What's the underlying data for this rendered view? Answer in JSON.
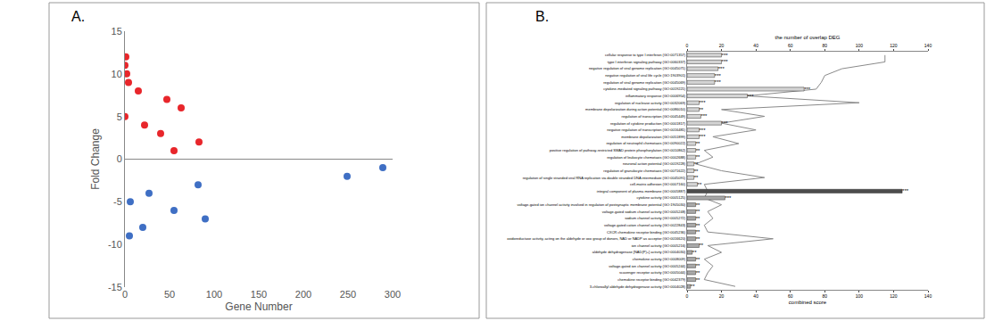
{
  "chart_data": [
    {
      "type": "scatter",
      "title": "A.",
      "xlabel": "Gene Number",
      "ylabel": "Fold Change",
      "xlim": [
        0,
        300
      ],
      "xticks": [
        0,
        50,
        100,
        150,
        200,
        250,
        300
      ],
      "ylim": [
        -15,
        15
      ],
      "yticks": [
        -15,
        -10,
        -5,
        0,
        5,
        10,
        15
      ],
      "grid": false,
      "marker": "circle",
      "series": [
        {
          "color": "#e8262b",
          "x": [
            1,
            0,
            2,
            4,
            0,
            15,
            22,
            40,
            47,
            55,
            63,
            83
          ],
          "values": [
            12,
            11,
            10,
            9,
            5,
            8,
            4,
            3,
            7,
            1,
            6,
            2
          ]
        },
        {
          "color": "#3f6fc4",
          "x": [
            5,
            6,
            20,
            27,
            55,
            82,
            90,
            249,
            289
          ],
          "values": [
            -9,
            -5,
            -8,
            -4,
            -6,
            -3,
            -7,
            -2,
            -1
          ]
        }
      ]
    },
    {
      "type": "bar",
      "title": "B.",
      "orientation": "horizontal",
      "xlabel": "combined score",
      "x2label": "the number of overlap DEG",
      "xlim": [
        0,
        140
      ],
      "xticks": [
        0,
        20,
        40,
        60,
        80,
        100,
        120,
        140
      ],
      "x2lim": [
        0,
        140
      ],
      "x2ticks": [
        0,
        20,
        40,
        60,
        80,
        100,
        120,
        140
      ],
      "grid": false,
      "categories": [
        "cellular response to type I interferon (GO:0071357)",
        "type I interferon signaling pathway (GO:0060337)",
        "negative regulation of viral genome replication (GO:0045071)",
        "negative regulation of viral life cycle (GO:1903901)",
        "regulation of viral genome replication (GO:0045069)",
        "cytokine-mediated signaling pathway (GO:0019221)",
        "inflammatory response (GO:0006954)",
        "regulation of nuclease activity (GO:0032069)",
        "membrane depolarization during action potential (GO:0086010)",
        "regulation of transcription (GO:0045449)",
        "regulation of cytokine production (GO:0001817)",
        "negative regulation of transcription (GO:0016481)",
        "membrane depolarization (GO:0051899)",
        "regulation of neutrophil chemotaxis (GO:0090022)",
        "positive regulation of pathway-restricted SMAD protein phosphorylation (GO:0010862)",
        "regulation of leukocyte chemotaxis (GO:0002688)",
        "neuronal action potential (GO:0019228)",
        "regulation of granulocyte chemotaxis (GO:0071622)",
        "regulation of single stranded viral RNA replication via double stranded DNA intermediate (GO:0045091)",
        "cell-matrix adhesion (GO:0007160)",
        "integral component of plasma membrane (GO:0005887)",
        "cytokine activity (GO:0005125)",
        "voltage-gated ion channel activity involved in regulation of postsynaptic membrane potential (GO:1905030)",
        "voltage-gated sodium channel activity (GO:0005248)",
        "sodium channel activity (GO:0005272)",
        "voltage-gated cation channel activity (GO:0022843)",
        "CXCR chemokine receptor binding (GO:0045236)",
        "oxidoreductase activity, acting on the aldehyde or oxo group of donors, NAD or NADP as acceptor (GO:0016620)",
        "ion channel activity (GO:0005216)",
        "aldehyde dehydrogenase [NAD(P)+] activity (GO:0004030)",
        "chemokine activity (GO:0008009)",
        "voltage-gated ion channel activity (GO:0005244)",
        "scavenger receptor activity (GO:0005044)",
        "chemokine receptor binding (GO:0042379)",
        "3-chloroallyl aldehyde dehydrogenase activity (GO:0004028)"
      ],
      "significance": [
        "***",
        "***",
        "***",
        "***",
        "***",
        "***",
        "***",
        "***",
        "**",
        "***",
        "***",
        "***",
        "***",
        "**",
        "**",
        "**",
        "**",
        "**",
        "**",
        "**",
        "***",
        "***",
        "**",
        "**",
        "**",
        "**",
        "**",
        "**",
        "**",
        "**",
        "**",
        "**",
        "**",
        "**",
        "**"
      ],
      "series": [
        {
          "type": "bar",
          "axis": "x2",
          "colors": [
            "#d4d4d4",
            "#d4d4d4",
            "#d4d4d4",
            "#d4d4d4",
            "#d4d4d4",
            "#d4d4d4",
            "#d4d4d4",
            "#d4d4d4",
            "#d4d4d4",
            "#d4d4d4",
            "#d4d4d4",
            "#d4d4d4",
            "#d4d4d4",
            "#d4d4d4",
            "#d4d4d4",
            "#d4d4d4",
            "#d4d4d4",
            "#d4d4d4",
            "#d4d4d4",
            "#d4d4d4",
            "#4d4d4d",
            "#a8a8a8",
            "#a8a8a8",
            "#a8a8a8",
            "#a8a8a8",
            "#a8a8a8",
            "#a8a8a8",
            "#a8a8a8",
            "#a8a8a8",
            "#a8a8a8",
            "#a8a8a8",
            "#a8a8a8",
            "#a8a8a8",
            "#a8a8a8",
            "#a8a8a8"
          ],
          "values": [
            20,
            20,
            18,
            16,
            16,
            68,
            35,
            7,
            7,
            8,
            20,
            7,
            7,
            5,
            5,
            5,
            4,
            4,
            4,
            6,
            125,
            22,
            5,
            5,
            5,
            5,
            5,
            5,
            7,
            3,
            5,
            5,
            5,
            5,
            2
          ]
        },
        {
          "type": "line",
          "color": "#8a8a8a",
          "line_style": "solid",
          "values": [
            115,
            115,
            90,
            80,
            78,
            75,
            35,
            100,
            20,
            45,
            20,
            40,
            15,
            30,
            10,
            15,
            5,
            20,
            45,
            10,
            12,
            10,
            20,
            12,
            15,
            10,
            12,
            50,
            12,
            20,
            10,
            15,
            12,
            10,
            28
          ]
        }
      ]
    }
  ]
}
